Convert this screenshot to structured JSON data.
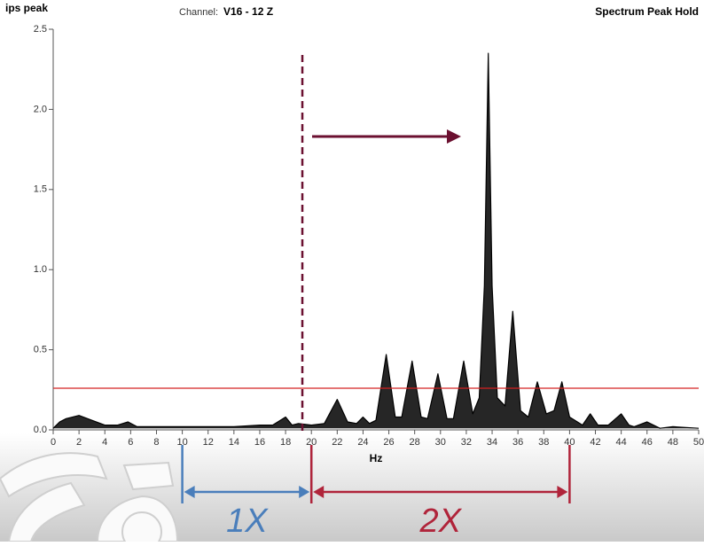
{
  "chart_data": {
    "type": "line",
    "title": "ips peak",
    "channel_label": "Channel:",
    "channel": "V16 - 12 Z",
    "subtitle": "Spectrum Peak Hold",
    "x_label": "Hz",
    "xlim": [
      0,
      50
    ],
    "ylim": [
      0,
      2.5
    ],
    "xticks": [
      0,
      2,
      4,
      6,
      8,
      10,
      12,
      14,
      16,
      18,
      20,
      22,
      24,
      26,
      28,
      30,
      32,
      34,
      36,
      38,
      40,
      42,
      44,
      46,
      48,
      50
    ],
    "yticks": [
      {
        "value": 0,
        "label": "0.0"
      },
      0.5,
      {
        "value": 1,
        "label": "1.0"
      },
      1.5,
      {
        "value": 2,
        "label": "2.0"
      },
      2.5
    ],
    "series": [
      {
        "color": "#000000",
        "x": [
          0,
          0.5,
          1,
          2,
          3,
          4,
          5,
          5.8,
          6.5,
          8,
          10,
          12,
          14,
          16,
          17,
          18,
          18.5,
          19,
          20,
          21,
          22,
          22.8,
          23.5,
          24,
          24.5,
          25,
          25.8,
          26.5,
          27,
          27.8,
          28.5,
          29,
          29.8,
          30.5,
          31,
          31.8,
          32.5,
          33,
          33.4,
          33.7,
          34,
          34.4,
          35,
          35.6,
          36.2,
          36.8,
          37.5,
          38.2,
          38.8,
          39.4,
          40,
          41,
          41.6,
          42.2,
          43,
          44,
          44.6,
          45,
          46,
          47,
          48,
          50
        ],
        "values": [
          0.01,
          0.05,
          0.07,
          0.09,
          0.06,
          0.03,
          0.03,
          0.05,
          0.02,
          0.02,
          0.02,
          0.02,
          0.02,
          0.03,
          0.03,
          0.08,
          0.03,
          0.04,
          0.03,
          0.04,
          0.19,
          0.05,
          0.04,
          0.08,
          0.04,
          0.06,
          0.47,
          0.08,
          0.08,
          0.43,
          0.08,
          0.07,
          0.35,
          0.07,
          0.07,
          0.43,
          0.1,
          0.2,
          0.9,
          2.35,
          0.9,
          0.2,
          0.15,
          0.74,
          0.12,
          0.08,
          0.3,
          0.1,
          0.12,
          0.3,
          0.08,
          0.03,
          0.1,
          0.03,
          0.03,
          0.1,
          0.03,
          0.02,
          0.05,
          0.01,
          0.02,
          0.01
        ]
      }
    ],
    "threshold": {
      "value": 0.26,
      "color": "#d42020"
    },
    "marker_x": {
      "value": 19.3,
      "color": "#6b1030"
    },
    "brackets": [
      {
        "label": "1X",
        "from": 10,
        "to": 20,
        "color": "#4a7ebb"
      },
      {
        "label": "2X",
        "from": 20,
        "to": 40,
        "color": "#b0243a"
      }
    ]
  }
}
